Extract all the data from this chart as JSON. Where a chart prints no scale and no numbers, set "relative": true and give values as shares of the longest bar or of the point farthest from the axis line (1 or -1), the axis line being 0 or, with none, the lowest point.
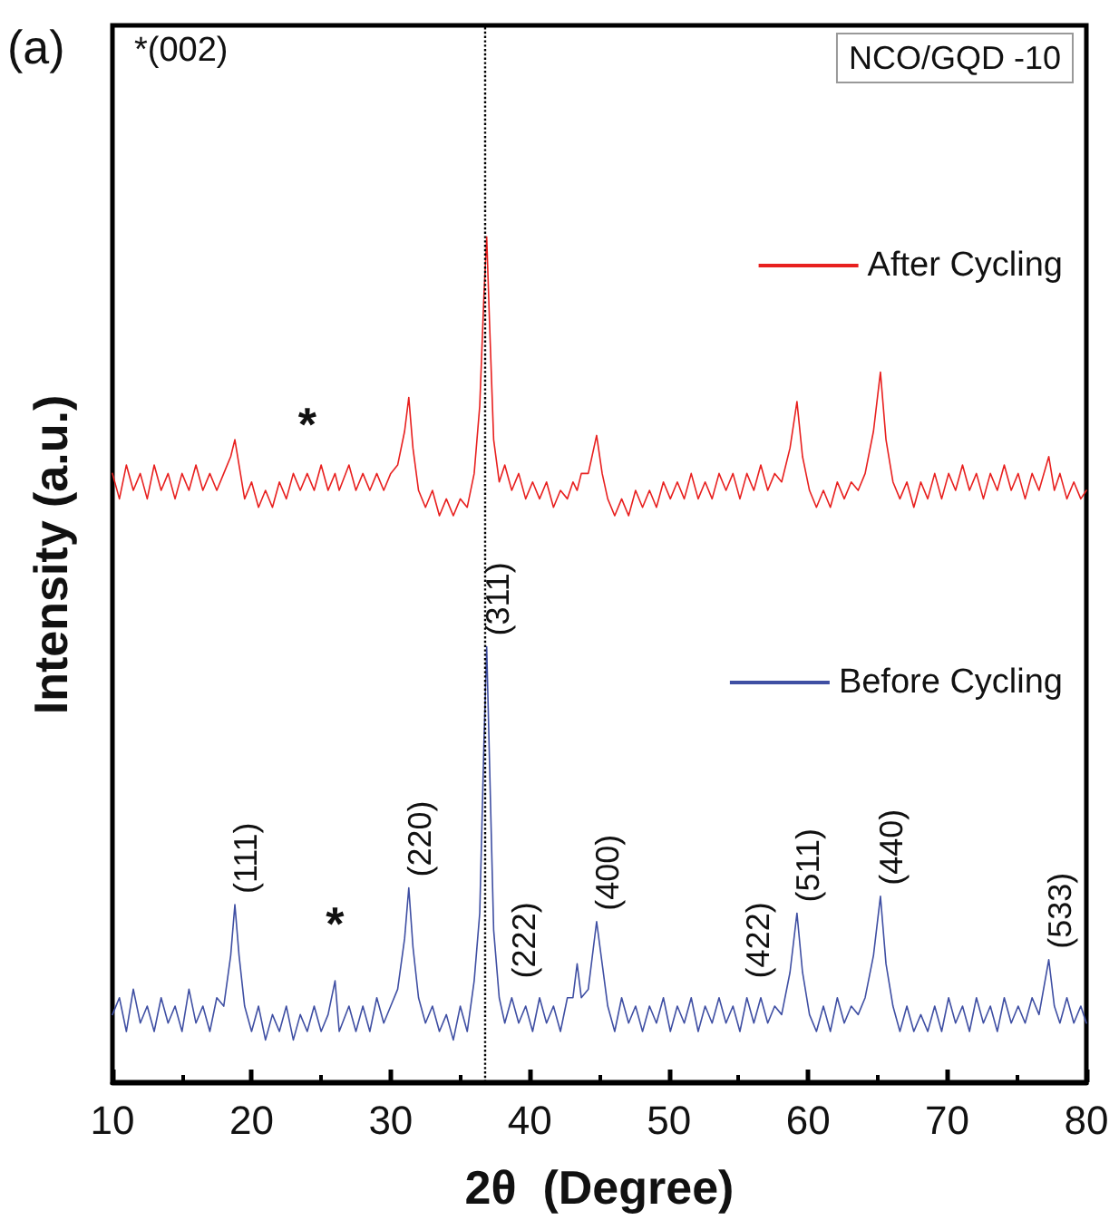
{
  "chart_data": {
    "type": "line",
    "relative": true,
    "xlabel": "2θ  (Degree)",
    "ylabel": "Intensity (a.u.)",
    "xlim": [
      10,
      80
    ],
    "xticks": [
      10,
      20,
      30,
      40,
      50,
      60,
      70,
      80
    ],
    "grid": false,
    "legend": "right",
    "marker": "none",
    "line_style": "solid",
    "x": [
      10,
      10.5,
      11,
      11.5,
      12,
      12.5,
      13,
      13.5,
      14,
      14.5,
      15,
      15.5,
      16,
      16.5,
      17,
      17.5,
      18,
      18.5,
      18.8,
      19.1,
      19.5,
      20,
      20.5,
      21,
      21.5,
      22,
      22.5,
      23,
      23.5,
      24,
      24.5,
      25,
      25.5,
      26,
      26.3,
      27,
      27.5,
      28,
      28.5,
      29,
      29.5,
      30,
      30.5,
      31,
      31.3,
      31.6,
      32,
      32.5,
      33,
      33.5,
      34,
      34.5,
      35,
      35.5,
      36,
      36.4,
      36.7,
      36.9,
      37.1,
      37.4,
      37.8,
      38.2,
      38.7,
      39.2,
      39.7,
      40.2,
      40.7,
      41.2,
      41.7,
      42.2,
      42.7,
      43.1,
      43.4,
      43.7,
      44.2,
      44.8,
      45.2,
      45.6,
      46.1,
      46.6,
      47.1,
      47.6,
      48.1,
      48.6,
      49.1,
      49.6,
      50.1,
      50.6,
      51.1,
      51.6,
      52.1,
      52.6,
      53.1,
      53.6,
      54.1,
      54.6,
      55.1,
      55.6,
      56.1,
      56.6,
      57.1,
      57.6,
      58.1,
      58.7,
      59.2,
      59.6,
      60.1,
      60.6,
      61.1,
      61.6,
      62.1,
      62.6,
      63.1,
      63.6,
      64.1,
      64.7,
      65.2,
      65.6,
      66.1,
      66.6,
      67.1,
      67.6,
      68.1,
      68.6,
      69.1,
      69.6,
      70.1,
      70.6,
      71.1,
      71.6,
      72.1,
      72.6,
      73.1,
      73.6,
      74.1,
      74.6,
      75.1,
      75.6,
      76.1,
      76.6,
      77.3,
      77.7,
      78.1,
      78.6,
      79.1,
      79.6,
      80
    ],
    "series": [
      {
        "name": "After Cycling",
        "color": "#e8201f",
        "values": [
          0.72,
          0.69,
          0.73,
          0.7,
          0.72,
          0.69,
          0.73,
          0.7,
          0.72,
          0.69,
          0.72,
          0.7,
          0.73,
          0.7,
          0.72,
          0.7,
          0.72,
          0.74,
          0.76,
          0.73,
          0.69,
          0.71,
          0.68,
          0.7,
          0.68,
          0.71,
          0.69,
          0.72,
          0.7,
          0.72,
          0.7,
          0.73,
          0.7,
          0.72,
          0.7,
          0.73,
          0.7,
          0.72,
          0.7,
          0.72,
          0.7,
          0.72,
          0.73,
          0.77,
          0.81,
          0.75,
          0.7,
          0.68,
          0.7,
          0.67,
          0.69,
          0.67,
          0.69,
          0.68,
          0.72,
          0.8,
          0.93,
          1,
          0.9,
          0.76,
          0.71,
          0.73,
          0.7,
          0.72,
          0.69,
          0.71,
          0.69,
          0.71,
          0.68,
          0.7,
          0.69,
          0.71,
          0.7,
          0.72,
          0.72,
          0.765,
          0.72,
          0.69,
          0.67,
          0.69,
          0.67,
          0.7,
          0.68,
          0.7,
          0.68,
          0.71,
          0.69,
          0.71,
          0.69,
          0.72,
          0.69,
          0.71,
          0.69,
          0.72,
          0.7,
          0.72,
          0.69,
          0.72,
          0.7,
          0.73,
          0.7,
          0.72,
          0.71,
          0.75,
          0.805,
          0.74,
          0.7,
          0.68,
          0.7,
          0.68,
          0.71,
          0.69,
          0.71,
          0.7,
          0.72,
          0.77,
          0.84,
          0.76,
          0.71,
          0.69,
          0.71,
          0.68,
          0.71,
          0.69,
          0.72,
          0.69,
          0.72,
          0.7,
          0.73,
          0.7,
          0.72,
          0.69,
          0.72,
          0.7,
          0.73,
          0.7,
          0.72,
          0.69,
          0.72,
          0.7,
          0.74,
          0.7,
          0.72,
          0.69,
          0.71,
          0.69,
          0.7
        ]
      },
      {
        "name": "Before Cycling",
        "color": "#3f4fa3",
        "values": [
          0.08,
          0.1,
          0.06,
          0.11,
          0.07,
          0.09,
          0.06,
          0.1,
          0.07,
          0.09,
          0.06,
          0.11,
          0.07,
          0.09,
          0.06,
          0.1,
          0.09,
          0.15,
          0.21,
          0.15,
          0.09,
          0.06,
          0.09,
          0.05,
          0.08,
          0.06,
          0.09,
          0.05,
          0.08,
          0.06,
          0.09,
          0.06,
          0.08,
          0.12,
          0.06,
          0.09,
          0.06,
          0.09,
          0.06,
          0.1,
          0.07,
          0.09,
          0.11,
          0.17,
          0.23,
          0.16,
          0.1,
          0.07,
          0.09,
          0.06,
          0.08,
          0.05,
          0.09,
          0.06,
          0.12,
          0.2,
          0.4,
          0.515,
          0.38,
          0.18,
          0.1,
          0.07,
          0.1,
          0.07,
          0.09,
          0.06,
          0.1,
          0.07,
          0.09,
          0.06,
          0.1,
          0.1,
          0.14,
          0.1,
          0.11,
          0.19,
          0.14,
          0.09,
          0.06,
          0.1,
          0.07,
          0.09,
          0.06,
          0.09,
          0.07,
          0.1,
          0.06,
          0.09,
          0.07,
          0.1,
          0.06,
          0.09,
          0.07,
          0.1,
          0.07,
          0.09,
          0.06,
          0.1,
          0.07,
          0.1,
          0.07,
          0.09,
          0.08,
          0.13,
          0.2,
          0.13,
          0.08,
          0.06,
          0.09,
          0.06,
          0.1,
          0.07,
          0.09,
          0.08,
          0.1,
          0.15,
          0.22,
          0.14,
          0.09,
          0.06,
          0.09,
          0.06,
          0.08,
          0.06,
          0.09,
          0.06,
          0.1,
          0.07,
          0.09,
          0.06,
          0.1,
          0.07,
          0.09,
          0.06,
          0.1,
          0.07,
          0.09,
          0.07,
          0.1,
          0.08,
          0.145,
          0.09,
          0.07,
          0.1,
          0.07,
          0.09,
          0.07
        ]
      }
    ],
    "ref_lines": [
      {
        "axis": "x",
        "value": 36.8,
        "color": "#000000",
        "line_style": "dotted"
      }
    ],
    "annotations": [
      "(a)",
      "*(002)",
      "NCO/GQD -10",
      {
        "text": "(111)",
        "x": 18.8,
        "y": 0.21
      },
      {
        "text": "(220)",
        "x": 31.3,
        "y": 0.23
      },
      {
        "text": "(311)",
        "x": 36.9,
        "y": 0.515
      },
      {
        "text": "(222)",
        "x": 38.8,
        "y": 0.11
      },
      {
        "text": "(400)",
        "x": 44.8,
        "y": 0.19
      },
      {
        "text": "(422)",
        "x": 55.6,
        "y": 0.11
      },
      {
        "text": "(511)",
        "x": 59.2,
        "y": 0.2
      },
      {
        "text": "(440)",
        "x": 65.2,
        "y": 0.22
      },
      {
        "text": "(533)",
        "x": 77.3,
        "y": 0.145
      },
      {
        "text": "*",
        "x": 26,
        "y": 0.13
      },
      {
        "text": "*",
        "x": 24,
        "y": 0.72
      }
    ]
  }
}
